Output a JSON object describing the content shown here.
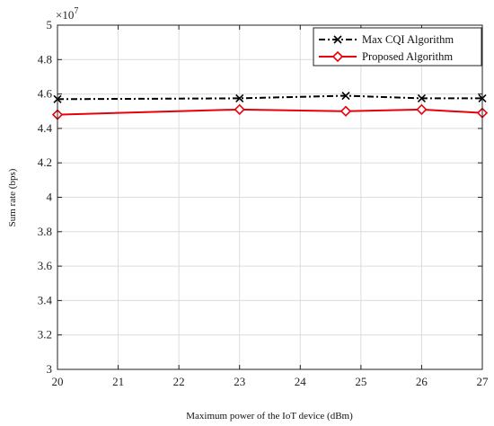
{
  "chart_data": {
    "type": "line",
    "title": "",
    "xlabel": "Maximum power of the IoT device (dBm)",
    "ylabel": "Sum rate (bps)",
    "exponent_label": "×10",
    "exponent_value": "7",
    "xlim": [
      20,
      27
    ],
    "ylim": [
      3,
      5
    ],
    "xticks": [
      "20",
      "21",
      "22",
      "23",
      "24",
      "25",
      "26",
      "27"
    ],
    "yticks": [
      "3",
      "3.2",
      "3.4",
      "3.6",
      "3.8",
      "4",
      "4.2",
      "4.4",
      "4.6",
      "4.8",
      "5"
    ],
    "grid": true,
    "legend_position": "top-right",
    "series": [
      {
        "name": "Max CQI Algorithm",
        "color": "#000000",
        "line_style": "dash-dot",
        "marker": "x",
        "x": [
          20,
          23,
          24.75,
          26,
          27
        ],
        "y": [
          4.57,
          4.575,
          4.59,
          4.575,
          4.575
        ]
      },
      {
        "name": "Proposed Algorithm",
        "color": "#e8000b",
        "line_style": "solid",
        "marker": "diamond",
        "x": [
          20,
          23,
          24.75,
          26,
          27
        ],
        "y": [
          4.48,
          4.51,
          4.5,
          4.51,
          4.49
        ]
      }
    ]
  }
}
